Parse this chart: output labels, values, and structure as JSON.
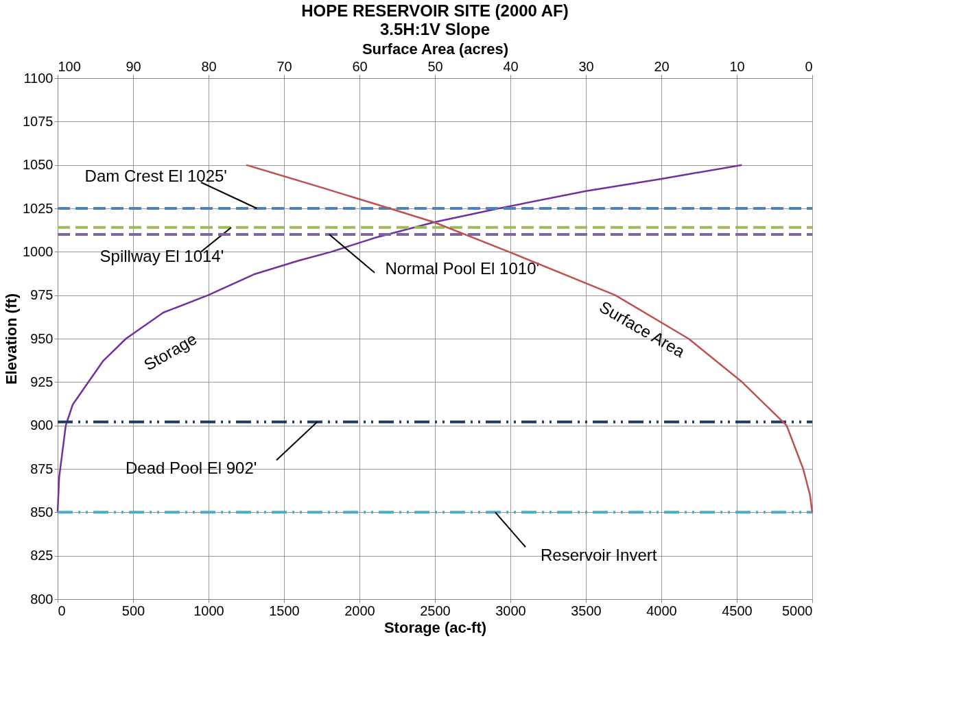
{
  "chart_data": {
    "type": "line",
    "title": "HOPE RESERVOIR SITE (2000 AF)",
    "subtitle": "3.5H:1V Slope",
    "xlabel": "Storage (ac-ft)",
    "ylabel": "Elevation (ft)",
    "x2label": "Surface Area (acres)",
    "xlim": [
      0,
      5000
    ],
    "xticks": [
      0,
      500,
      1000,
      1500,
      2000,
      2500,
      3000,
      3500,
      4000,
      4500,
      5000
    ],
    "x2lim": [
      100,
      0
    ],
    "x2ticks": [
      100,
      90,
      80,
      70,
      60,
      50,
      40,
      30,
      20,
      10,
      0
    ],
    "ylim": [
      800,
      1100
    ],
    "yticks": [
      800,
      825,
      850,
      875,
      900,
      925,
      950,
      975,
      1000,
      1025,
      1050,
      1075,
      1100
    ],
    "grid": true,
    "marker": "none",
    "line_style": "solid",
    "series": [
      {
        "name": "Storage",
        "color": "#7030a0",
        "x": [
          0,
          10,
          54,
          100,
          204,
          300,
          453,
          700,
          997,
          1300,
          1600,
          1813,
          2100,
          2493,
          2924,
          3500,
          4000,
          4533
        ],
        "values": [
          850,
          870,
          900,
          912,
          925,
          937,
          950,
          965,
          975,
          987,
          995,
          1000,
          1008,
          1017,
          1025,
          1035,
          1042,
          1050
        ]
      },
      {
        "name": "Surface Area",
        "color": "#c0504d",
        "axis": "x2",
        "x": [
          0,
          0.3,
          1.2,
          3.4,
          9.3,
          16.4,
          26.1,
          40.2,
          50.1,
          56,
          65,
          75
        ],
        "values": [
          850,
          860,
          875,
          900,
          925,
          950,
          975,
          1000,
          1017,
          1025,
          1037,
          1050
        ]
      }
    ],
    "ref_lines": [
      {
        "axis": "y",
        "value": 1025,
        "label": "Dam Crest El 1025'",
        "color": "#4f81bd",
        "line_style": "dashed"
      },
      {
        "axis": "y",
        "value": 1014,
        "label": "Spillway El 1014'",
        "color": "#9bbb59",
        "line_style": "dashed"
      },
      {
        "axis": "y",
        "value": 1010,
        "label": "Normal Pool El 1010'",
        "color": "#8064a2",
        "line_style": "dashed"
      },
      {
        "axis": "y",
        "value": 902,
        "label": "Dead Pool El 902'",
        "color": "#1f3864",
        "line_style": "dashdot"
      },
      {
        "axis": "y",
        "value": 850,
        "label": "Reservoir Invert",
        "color": "#4bacc6",
        "line_style": "dashdot"
      }
    ]
  }
}
